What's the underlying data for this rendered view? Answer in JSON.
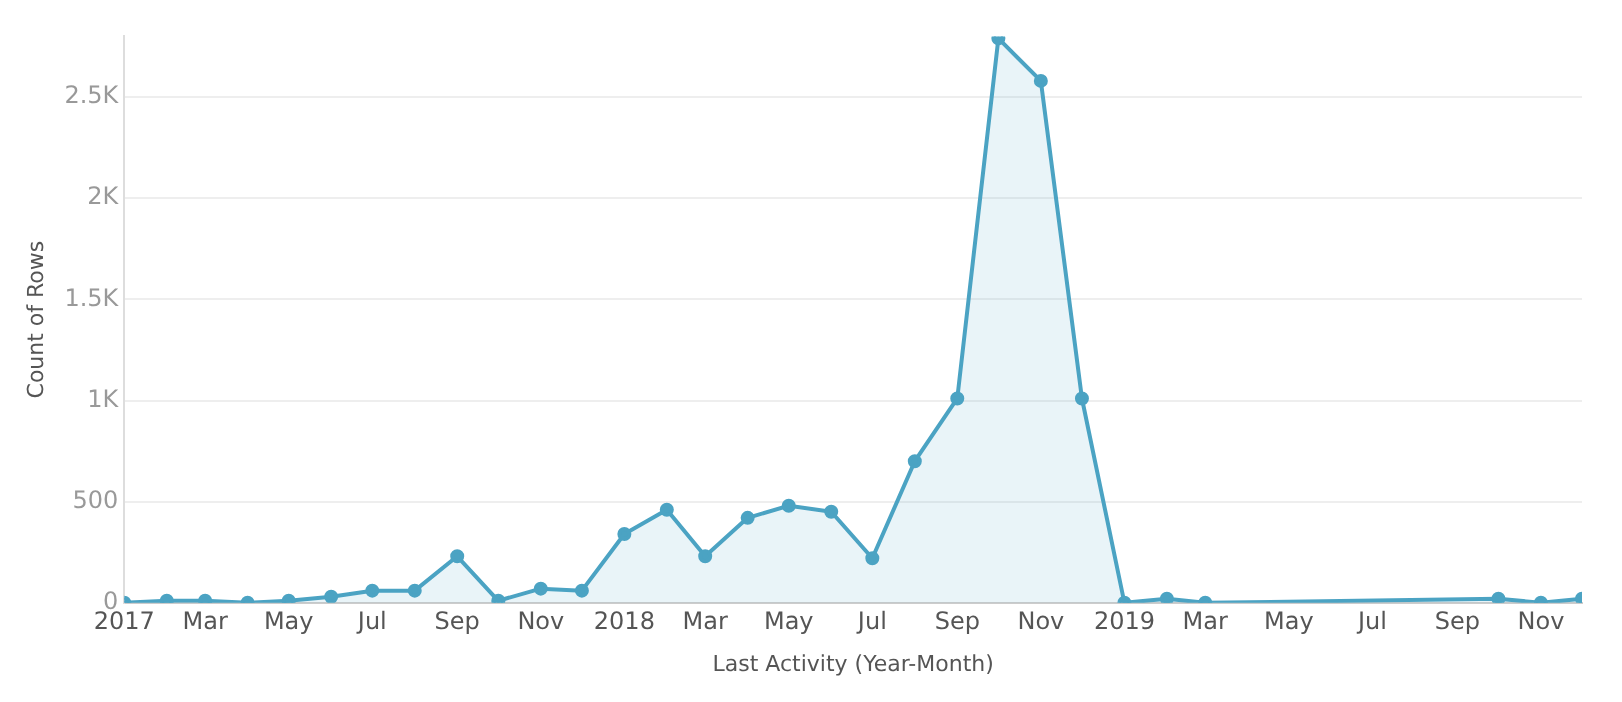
{
  "chart_data": {
    "type": "area",
    "xlabel": "Last Activity (Year-Month)",
    "ylabel": "Count of Rows",
    "x": [
      "2017-01",
      "2017-02",
      "2017-03",
      "2017-04",
      "2017-05",
      "2017-06",
      "2017-07",
      "2017-08",
      "2017-09",
      "2017-10",
      "2017-11",
      "2017-12",
      "2018-01",
      "2018-02",
      "2018-03",
      "2018-04",
      "2018-05",
      "2018-06",
      "2018-07",
      "2018-08",
      "2018-09",
      "2018-10",
      "2018-11",
      "2018-12",
      "2019-01",
      "2019-02",
      "2019-03",
      "2019-10",
      "2019-11",
      "2019-12"
    ],
    "series": [
      {
        "color": "#4ba3c3",
        "values": [
          0,
          10,
          10,
          0,
          10,
          30,
          60,
          60,
          230,
          10,
          70,
          60,
          340,
          460,
          230,
          420,
          480,
          450,
          220,
          700,
          1010,
          2790,
          2580,
          1010,
          0,
          20,
          0,
          20,
          0,
          20
        ]
      }
    ],
    "xlim": [
      "2017-01",
      "2019-12"
    ],
    "xticks": [
      {
        "value": "2017-01",
        "label": "2017"
      },
      {
        "value": "2017-03",
        "label": "Mar"
      },
      {
        "value": "2017-05",
        "label": "May"
      },
      {
        "value": "2017-07",
        "label": "Jul"
      },
      {
        "value": "2017-09",
        "label": "Sep"
      },
      {
        "value": "2017-11",
        "label": "Nov"
      },
      {
        "value": "2018-01",
        "label": "2018"
      },
      {
        "value": "2018-03",
        "label": "Mar"
      },
      {
        "value": "2018-05",
        "label": "May"
      },
      {
        "value": "2018-07",
        "label": "Jul"
      },
      {
        "value": "2018-09",
        "label": "Sep"
      },
      {
        "value": "2018-11",
        "label": "Nov"
      },
      {
        "value": "2019-01",
        "label": "2019"
      },
      {
        "value": "2019-03",
        "label": "Mar"
      },
      {
        "value": "2019-05",
        "label": "May"
      },
      {
        "value": "2019-07",
        "label": "Jul"
      },
      {
        "value": "2019-09",
        "label": "Sep"
      },
      {
        "value": "2019-11",
        "label": "Nov"
      }
    ],
    "ylim": [
      0,
      2800
    ],
    "yticks": [
      0,
      500,
      {
        "value": 1000,
        "label": "1K"
      },
      {
        "value": 1500,
        "label": "1.5K"
      },
      {
        "value": 2000,
        "label": "2K"
      },
      {
        "value": 2500,
        "label": "2.5K"
      }
    ],
    "grid": "y",
    "marker": "circle",
    "line_style": "solid",
    "legend": false
  }
}
